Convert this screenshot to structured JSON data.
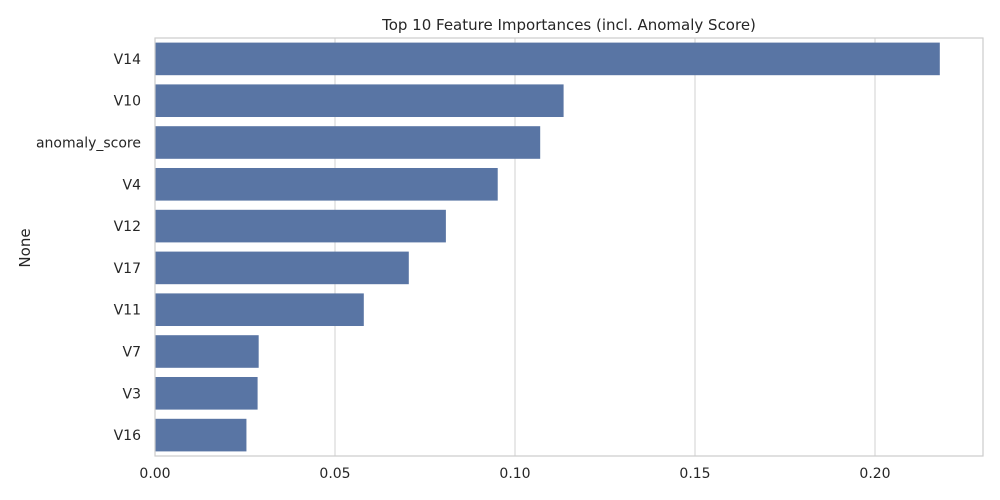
{
  "chart_data": {
    "type": "bar",
    "orientation": "horizontal",
    "title": "Top 10 Feature Importances (incl. Anomaly Score)",
    "xlabel": "",
    "ylabel": "None",
    "categories": [
      "V14",
      "V10",
      "anomaly_score",
      "V4",
      "V12",
      "V17",
      "V11",
      "V7",
      "V3",
      "V16"
    ],
    "values": [
      0.218,
      0.1135,
      0.107,
      0.0952,
      0.0808,
      0.0705,
      0.058,
      0.0288,
      0.0285,
      0.0254
    ],
    "xlim": [
      0.0,
      0.23
    ],
    "xticks": [
      0.0,
      0.05,
      0.1,
      0.15,
      0.2
    ],
    "xtick_labels": [
      "0.00",
      "0.05",
      "0.10",
      "0.15",
      "0.20"
    ],
    "grid": "vertical",
    "legend": "none",
    "bar_color": "#5975a4"
  }
}
